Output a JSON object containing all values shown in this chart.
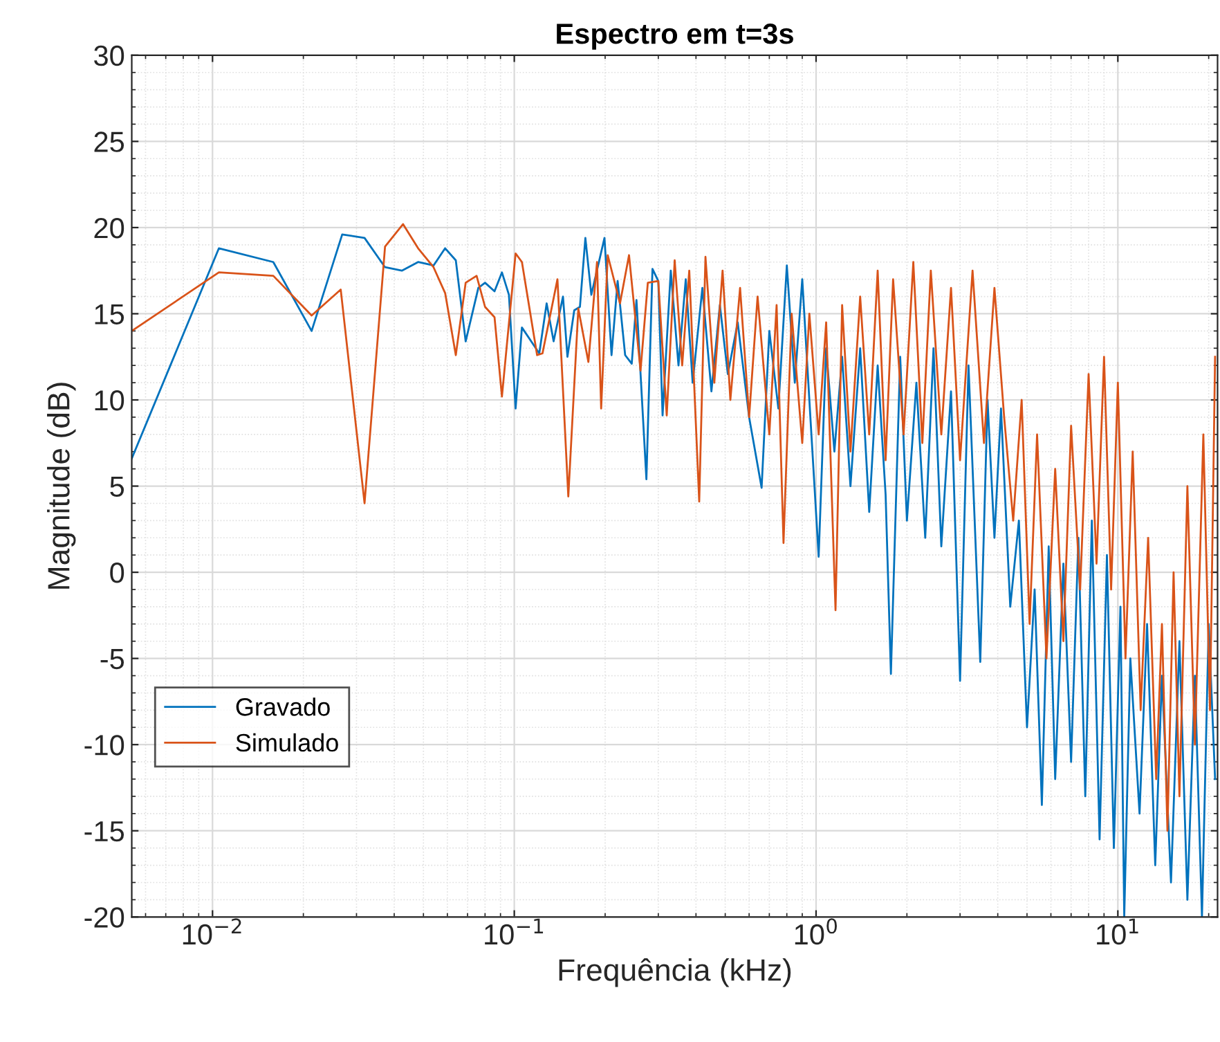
{
  "chart_data": {
    "type": "line",
    "title": "Espectro em t=3s",
    "xlabel": "Frequência (kHz)",
    "ylabel": "Magnitude (dB)",
    "log": "x",
    "xlim": [
      0.0054,
      21.4
    ],
    "ylim": [
      -20,
      30
    ],
    "xticks": [
      {
        "value": 0.01,
        "label": "10$^{−2}$"
      },
      {
        "value": 0.1,
        "label": "10$^{−1}$"
      },
      {
        "value": 1,
        "label": "10$^{0}$"
      },
      {
        "value": 10,
        "label": "10$^{1}$"
      }
    ],
    "yticks": [
      -20,
      -15,
      -10,
      -5,
      0,
      5,
      10,
      15,
      20,
      25,
      30
    ],
    "grid": true,
    "legend": "lower left",
    "line_style": "solid",
    "marker": "none",
    "series": [
      {
        "name": "Gravado",
        "color": "#0072bd",
        "x": [
          0.0054,
          0.0105,
          0.0159,
          0.0213,
          0.0269,
          0.0319,
          0.0373,
          0.0424,
          0.048,
          0.054,
          0.059,
          0.064,
          0.069,
          0.076,
          0.08,
          0.086,
          0.091,
          0.096,
          0.101,
          0.106,
          0.121,
          0.128,
          0.135,
          0.145,
          0.15,
          0.158,
          0.165,
          0.172,
          0.18,
          0.199,
          0.21,
          0.22,
          0.233,
          0.245,
          0.254,
          0.274,
          0.287,
          0.3,
          0.31,
          0.33,
          0.35,
          0.37,
          0.39,
          0.42,
          0.45,
          0.48,
          0.51,
          0.55,
          0.6,
          0.66,
          0.7,
          0.75,
          0.8,
          0.85,
          0.9,
          0.95,
          1.02,
          1.08,
          1.15,
          1.22,
          1.3,
          1.4,
          1.5,
          1.6,
          1.7,
          1.77,
          1.9,
          2.0,
          2.15,
          2.3,
          2.45,
          2.6,
          2.8,
          3.0,
          3.2,
          3.5,
          3.7,
          3.9,
          4.1,
          4.4,
          4.7,
          5.0,
          5.3,
          5.6,
          5.9,
          6.2,
          6.6,
          7.0,
          7.4,
          7.8,
          8.2,
          8.7,
          9.2,
          9.7,
          10.2,
          10.5,
          11.0,
          11.8,
          12.5,
          13.3,
          14.0,
          15.0,
          16.0,
          17.0,
          18.0,
          19.0,
          20.0,
          21.0
        ],
        "values": [
          6.6,
          18.8,
          18.0,
          14.0,
          19.6,
          19.4,
          17.7,
          17.5,
          18.0,
          17.8,
          18.8,
          18.1,
          13.4,
          16.5,
          16.8,
          16.3,
          17.4,
          16.1,
          9.5,
          14.2,
          12.7,
          15.6,
          13.4,
          16.0,
          12.5,
          15.2,
          15.4,
          19.4,
          16.1,
          19.4,
          12.6,
          16.9,
          12.6,
          12.1,
          15.8,
          5.4,
          17.6,
          16.9,
          9.1,
          17.5,
          12.0,
          17.0,
          11.0,
          16.5,
          10.5,
          15.5,
          11.5,
          14.5,
          9.0,
          4.9,
          14.0,
          9.5,
          17.8,
          11.0,
          17.0,
          10.0,
          0.9,
          13.0,
          7.0,
          12.5,
          5.0,
          13.0,
          3.5,
          12.0,
          4.5,
          -5.9,
          12.5,
          3.0,
          11.0,
          2.0,
          13.0,
          1.5,
          10.5,
          -6.3,
          12.0,
          -5.2,
          10.0,
          2.0,
          9.5,
          -2.0,
          3.0,
          -9.0,
          -1.0,
          -13.5,
          1.5,
          -12.0,
          0.5,
          -11.0,
          2.0,
          -13.0,
          3.0,
          -15.5,
          1.0,
          -16.0,
          -2.0,
          -20.0,
          -5.0,
          -14.0,
          -3.0,
          -17.0,
          -6.0,
          -18.0,
          -4.0,
          -19.0,
          -6.0,
          -20.0,
          -3.0,
          -12.0
        ]
      },
      {
        "name": "Simulado",
        "color": "#d95319",
        "x": [
          0.0054,
          0.0105,
          0.0159,
          0.0213,
          0.0266,
          0.0319,
          0.0373,
          0.0428,
          0.048,
          0.054,
          0.059,
          0.064,
          0.069,
          0.075,
          0.08,
          0.086,
          0.091,
          0.101,
          0.106,
          0.119,
          0.124,
          0.139,
          0.151,
          0.163,
          0.176,
          0.188,
          0.194,
          0.204,
          0.224,
          0.24,
          0.262,
          0.277,
          0.3,
          0.32,
          0.34,
          0.36,
          0.38,
          0.41,
          0.43,
          0.46,
          0.49,
          0.52,
          0.56,
          0.6,
          0.64,
          0.7,
          0.74,
          0.78,
          0.83,
          0.9,
          0.95,
          1.02,
          1.08,
          1.16,
          1.22,
          1.3,
          1.4,
          1.5,
          1.6,
          1.7,
          1.8,
          1.95,
          2.1,
          2.25,
          2.4,
          2.6,
          2.8,
          3.0,
          3.3,
          3.6,
          3.9,
          4.2,
          4.5,
          4.8,
          5.1,
          5.4,
          5.8,
          6.2,
          6.6,
          7.0,
          7.5,
          8.0,
          8.5,
          9.0,
          9.5,
          10.0,
          10.6,
          11.2,
          11.9,
          12.6,
          13.4,
          14.0,
          14.6,
          15.3,
          16.0,
          17.0,
          18.0,
          19.2,
          20.2,
          21.0
        ],
        "values": [
          14.0,
          17.4,
          17.2,
          14.9,
          16.4,
          4.0,
          18.9,
          20.2,
          18.8,
          17.7,
          16.2,
          12.6,
          16.8,
          17.2,
          15.4,
          14.8,
          10.2,
          18.5,
          18.0,
          12.6,
          12.7,
          17.0,
          4.4,
          15.3,
          12.2,
          18.0,
          9.5,
          18.4,
          15.6,
          18.4,
          11.7,
          16.8,
          16.9,
          9.1,
          18.1,
          12.0,
          17.5,
          4.1,
          18.3,
          11.0,
          17.5,
          10.0,
          16.5,
          9.0,
          16.0,
          8.0,
          15.5,
          1.7,
          15.0,
          7.5,
          15.0,
          8.0,
          14.5,
          -2.2,
          15.5,
          7.0,
          16.0,
          8.0,
          17.5,
          6.5,
          17.0,
          8.0,
          18.0,
          7.5,
          17.5,
          8.0,
          16.5,
          6.5,
          17.5,
          7.5,
          16.5,
          9.0,
          3.0,
          10.0,
          -3.0,
          8.0,
          -5.0,
          6.0,
          -4.0,
          8.5,
          -1.0,
          11.5,
          0.5,
          12.5,
          -1.0,
          11.0,
          -5.0,
          7.0,
          -8.0,
          2.0,
          -12.0,
          -3.0,
          -15.0,
          0.0,
          -13.0,
          5.0,
          -10.0,
          8.0,
          -8.0,
          12.5
        ]
      }
    ]
  }
}
